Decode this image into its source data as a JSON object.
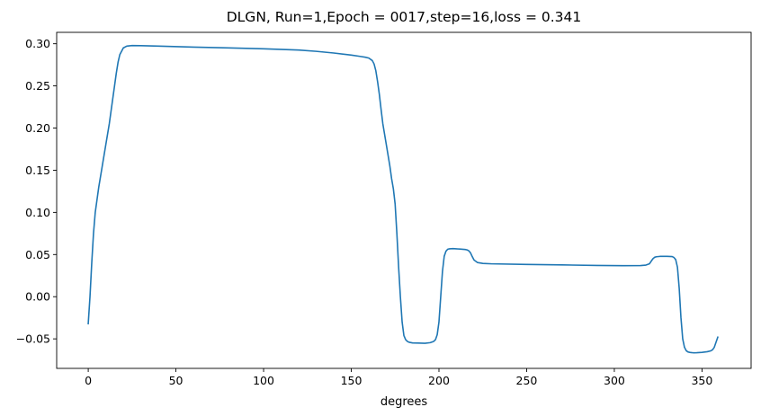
{
  "chart_data": {
    "type": "line",
    "title": "DLGN, Run=1,Epoch = 0017,step=16,loss = 0.341",
    "xlabel": "degrees",
    "ylabel": "",
    "xlim": [
      -18,
      378
    ],
    "ylim": [
      -0.085,
      0.3135
    ],
    "xticks": [
      0,
      50,
      100,
      150,
      200,
      250,
      300,
      350
    ],
    "xtick_labels": [
      "0",
      "50",
      "100",
      "150",
      "200",
      "250",
      "300",
      "350"
    ],
    "yticks": [
      -0.05,
      0.0,
      0.05,
      0.1,
      0.15,
      0.2,
      0.25,
      0.3
    ],
    "ytick_labels": [
      "−0.05",
      "0.00",
      "0.05",
      "0.10",
      "0.15",
      "0.20",
      "0.25",
      "0.30"
    ],
    "grid": false,
    "legend": "none",
    "line_color": "#1f77b4",
    "series": [
      {
        "x": [
          0,
          1,
          2,
          3,
          4,
          5,
          6,
          8,
          10,
          12,
          14,
          15,
          16,
          17,
          18,
          20,
          22,
          25,
          30,
          40,
          60,
          80,
          100,
          120,
          130,
          140,
          150,
          155,
          158,
          160,
          162,
          163,
          164,
          165,
          166,
          167,
          168,
          170,
          172,
          173,
          174,
          175,
          176,
          177,
          178,
          179,
          180,
          181,
          182,
          183,
          185,
          188,
          192,
          195,
          197,
          198,
          199,
          200,
          201,
          202,
          203,
          204,
          205,
          206,
          208,
          212,
          215,
          216,
          217,
          218,
          219,
          220,
          222,
          225,
          230,
          250,
          270,
          290,
          305,
          315,
          318,
          320,
          321,
          322,
          323,
          324,
          326,
          330,
          333,
          334,
          335,
          336,
          337,
          338,
          339,
          340,
          341,
          342,
          343,
          344,
          345,
          347,
          350,
          353,
          355,
          356,
          357,
          358,
          359
        ],
        "y": [
          -0.032,
          0.0,
          0.04,
          0.075,
          0.1,
          0.115,
          0.13,
          0.155,
          0.18,
          0.205,
          0.235,
          0.25,
          0.265,
          0.278,
          0.287,
          0.295,
          0.2972,
          0.2978,
          0.2977,
          0.2972,
          0.296,
          0.295,
          0.294,
          0.2925,
          0.291,
          0.289,
          0.2865,
          0.285,
          0.284,
          0.283,
          0.28,
          0.276,
          0.268,
          0.255,
          0.24,
          0.222,
          0.205,
          0.18,
          0.155,
          0.14,
          0.128,
          0.11,
          0.075,
          0.035,
          0.0,
          -0.03,
          -0.046,
          -0.051,
          -0.053,
          -0.054,
          -0.0548,
          -0.055,
          -0.0552,
          -0.0545,
          -0.053,
          -0.051,
          -0.045,
          -0.03,
          0.0,
          0.03,
          0.048,
          0.054,
          0.0563,
          0.0568,
          0.057,
          0.0565,
          0.056,
          0.0555,
          0.0545,
          0.052,
          0.0475,
          0.0435,
          0.0405,
          0.0395,
          0.039,
          0.0383,
          0.0377,
          0.0371,
          0.0368,
          0.0369,
          0.0375,
          0.039,
          0.042,
          0.045,
          0.0468,
          0.0474,
          0.0478,
          0.0479,
          0.0476,
          0.0465,
          0.044,
          0.035,
          0.01,
          -0.025,
          -0.05,
          -0.06,
          -0.064,
          -0.0655,
          -0.066,
          -0.0663,
          -0.0665,
          -0.0664,
          -0.066,
          -0.0652,
          -0.0642,
          -0.063,
          -0.06,
          -0.054,
          -0.048
        ]
      }
    ]
  }
}
